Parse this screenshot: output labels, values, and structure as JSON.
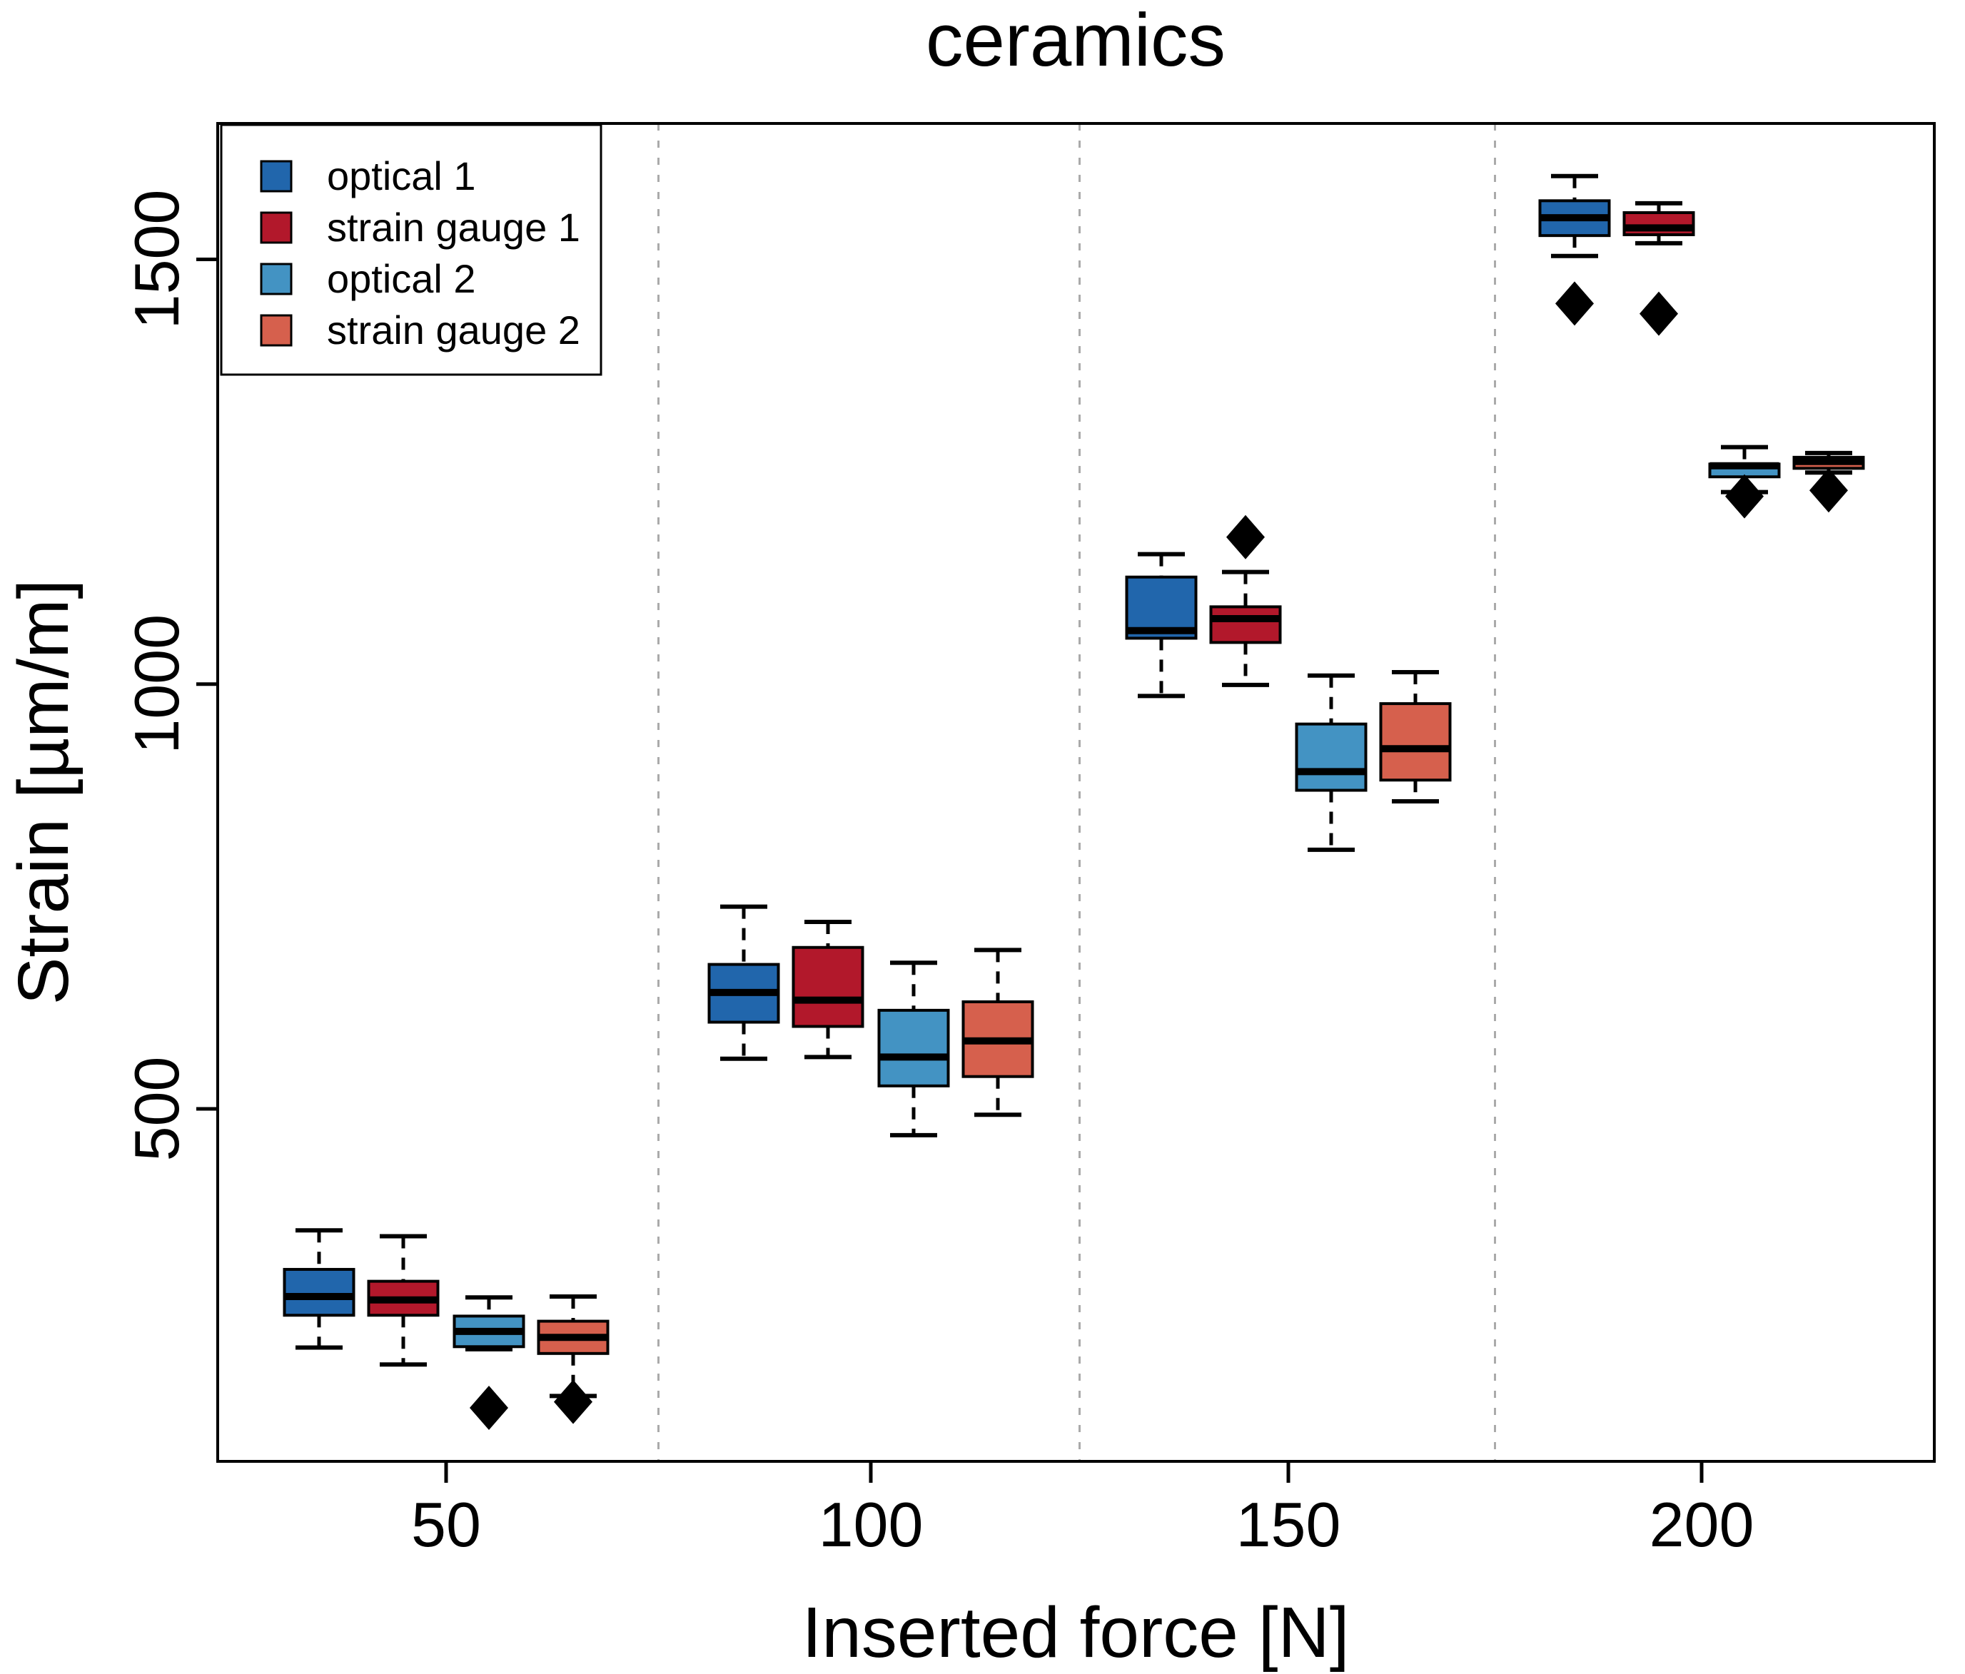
{
  "title": "ceramics",
  "axes": {
    "x": {
      "label": "Inserted force [N]",
      "ticks": [
        "50",
        "100",
        "150",
        "200"
      ]
    },
    "y": {
      "label": "Strain [µm/m]",
      "ticks": [
        "500",
        "1000",
        "1500"
      ]
    }
  },
  "legend": {
    "position": "top-left",
    "items": [
      {
        "label": "optical 1",
        "color": "#2166ac"
      },
      {
        "label": "strain gauge 1",
        "color": "#b2182b"
      },
      {
        "label": "optical 2",
        "color": "#4393c3"
      },
      {
        "label": "strain gauge 2",
        "color": "#d6604d"
      }
    ]
  },
  "colors": {
    "box_border": "#000000",
    "median": "#000000",
    "outlier": "#000000",
    "separator": "#aaaaaa",
    "frame": "#000000"
  },
  "chart_data": {
    "type": "boxplot",
    "title": "ceramics",
    "xlabel": "Inserted force [N]",
    "ylabel": "Strain [µm/m]",
    "categories": [
      50,
      100,
      150,
      200
    ],
    "yticks": [
      500,
      1000,
      1500
    ],
    "ylim": [
      85,
      1660
    ],
    "grid": "dashed vertical separators between force groups",
    "legend_position": "top-left",
    "series": [
      {
        "name": "optical 1",
        "color": "#2166ac",
        "boxes": [
          {
            "x": 50,
            "low": 219,
            "q1": 257,
            "median": 279,
            "q3": 311,
            "high": 357,
            "outliers": []
          },
          {
            "x": 100,
            "low": 559,
            "q1": 602,
            "median": 637,
            "q3": 670,
            "high": 738,
            "outliers": []
          },
          {
            "x": 150,
            "low": 986,
            "q1": 1054,
            "median": 1063,
            "q3": 1126,
            "high": 1153,
            "outliers": []
          },
          {
            "x": 200,
            "low": 1504,
            "q1": 1528,
            "median": 1549,
            "q3": 1569,
            "high": 1598,
            "outliers": [
              1448
            ]
          }
        ]
      },
      {
        "name": "strain gauge 1",
        "color": "#b2182b",
        "boxes": [
          {
            "x": 50,
            "low": 199,
            "q1": 257,
            "median": 275,
            "q3": 297,
            "high": 350,
            "outliers": []
          },
          {
            "x": 100,
            "low": 561,
            "q1": 597,
            "median": 628,
            "q3": 690,
            "high": 720,
            "outliers": []
          },
          {
            "x": 150,
            "low": 999,
            "q1": 1049,
            "median": 1077,
            "q3": 1091,
            "high": 1132,
            "outliers": [
              1173
            ]
          },
          {
            "x": 200,
            "low": 1519,
            "q1": 1529,
            "median": 1537,
            "q3": 1555,
            "high": 1566,
            "outliers": [
              1436
            ]
          }
        ]
      },
      {
        "name": "optical 2",
        "color": "#4393c3",
        "boxes": [
          {
            "x": 50,
            "low": 217,
            "q1": 220,
            "median": 238,
            "q3": 256,
            "high": 278,
            "outliers": [
              148
            ]
          },
          {
            "x": 100,
            "low": 469,
            "q1": 527,
            "median": 561,
            "q3": 616,
            "high": 672,
            "outliers": []
          },
          {
            "x": 150,
            "low": 805,
            "q1": 875,
            "median": 897,
            "q3": 953,
            "high": 1010,
            "outliers": []
          },
          {
            "x": 200,
            "low": 1226,
            "q1": 1244,
            "median": 1257,
            "q3": 1259,
            "high": 1279,
            "outliers": [
              1221
            ]
          }
        ]
      },
      {
        "name": "strain gauge 2",
        "color": "#d6604d",
        "boxes": [
          {
            "x": 50,
            "low": 162,
            "q1": 212,
            "median": 231,
            "q3": 250,
            "high": 279,
            "outliers": [
              155
            ]
          },
          {
            "x": 100,
            "low": 493,
            "q1": 538,
            "median": 580,
            "q3": 626,
            "high": 687,
            "outliers": []
          },
          {
            "x": 150,
            "low": 862,
            "q1": 887,
            "median": 924,
            "q3": 977,
            "high": 1014,
            "outliers": []
          },
          {
            "x": 200,
            "low": 1249,
            "q1": 1254,
            "median": 1262,
            "q3": 1267,
            "high": 1272,
            "outliers": [
              1228
            ]
          }
        ]
      }
    ]
  }
}
